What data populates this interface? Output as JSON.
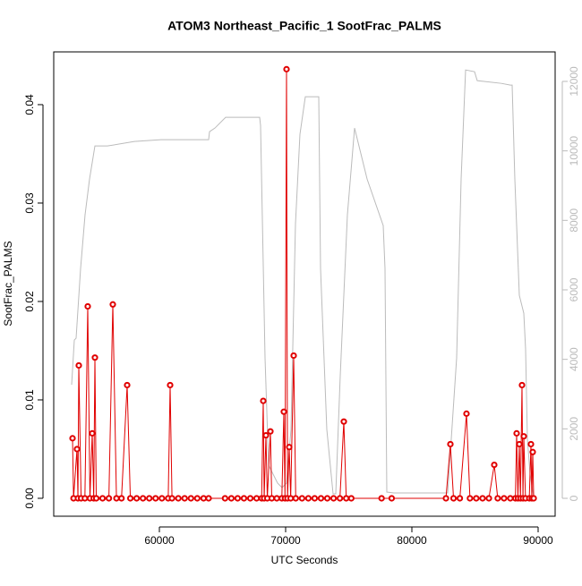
{
  "chart_data": {
    "type": "line",
    "title": "ATOM3 Northeast_Pacific_1 SootFrac_PALMS",
    "x_label": "UTC Seconds",
    "y_label": "SootFrac_PALMS",
    "xlim": [
      51631,
      91348
    ],
    "xticks": [
      60000,
      70000,
      80000,
      90000
    ],
    "ylim": [
      -0.00182,
      0.04536
    ],
    "yticks": [
      {
        "value": 0,
        "label": "0.00"
      },
      0.01,
      0.02,
      0.03,
      0.04
    ],
    "y2lim": [
      -515,
      12849
    ],
    "y2ticks": [
      0,
      2000,
      4000,
      6000,
      8000,
      10000,
      12000
    ],
    "series": [
      {
        "color": "#e00000",
        "markers": true,
        "x": [
          53121,
          53200,
          53475,
          53550,
          53617,
          53800,
          54100,
          54326,
          54500,
          54681,
          54800,
          54894,
          55000,
          55500,
          56000,
          56312,
          56600,
          57000,
          57447,
          57700,
          58200,
          58700,
          59200,
          59700,
          60200,
          60700,
          60851,
          61000,
          61500,
          62000,
          62500,
          63000,
          63500,
          63900,
          65200,
          65700,
          66200,
          66700,
          67200,
          67700,
          68100,
          68227,
          68300,
          68440,
          68550,
          68794,
          68900,
          69300,
          69700,
          69858,
          69950,
          70071,
          70150,
          70284,
          70400,
          70638,
          70800,
          71300,
          71800,
          72300,
          72800,
          73300,
          73800,
          74300,
          74610,
          74800,
          75200,
          77600,
          78400,
          82700,
          83050,
          83300,
          83800,
          84326,
          84600,
          85100,
          85600,
          86100,
          86525,
          86800,
          87300,
          87800,
          88200,
          88298,
          88400,
          88511,
          88600,
          88723,
          88800,
          88865,
          89000,
          89300,
          89433,
          89500,
          89574,
          89650
        ],
        "values": [
          0.0061,
          0,
          0.005,
          0,
          0.0135,
          0,
          0,
          0.0195,
          0,
          0.0066,
          0,
          0.0143,
          0,
          0,
          0,
          0.0197,
          0,
          0,
          0.0115,
          0,
          0,
          0,
          0,
          0,
          0,
          0,
          0.0115,
          0,
          0,
          0,
          0,
          0,
          0,
          0,
          0,
          0,
          0,
          0,
          0,
          0,
          0,
          0.0099,
          0,
          0.0064,
          0,
          0.0068,
          0,
          0,
          0,
          0.0088,
          0,
          0.0436,
          0,
          0.0052,
          0,
          0.0145,
          0,
          0,
          0,
          0,
          0,
          0,
          0,
          0,
          0.0078,
          0,
          0,
          0,
          0,
          0,
          0.0055,
          0,
          0,
          0.0086,
          0,
          0,
          0,
          0,
          0.0034,
          0,
          0,
          0,
          0,
          0.0066,
          0,
          0.0055,
          0,
          0.0115,
          0,
          0.0063,
          0,
          0,
          0.0055,
          0,
          0.0047,
          0
        ]
      },
      {
        "color": "#bbbbbb",
        "axis": "y2",
        "markers": false,
        "x": [
          53050,
          53262,
          53404,
          53759,
          54113,
          54468,
          54894,
          55887,
          58014,
          60142,
          63901,
          63972,
          64397,
          65248,
          67943,
          68014,
          68369,
          68652,
          69362,
          69716,
          70071,
          70425,
          70780,
          71134,
          71560,
          72624,
          72766,
          73262,
          73759,
          73971,
          74326,
          74893,
          75461,
          76454,
          77730,
          77872,
          78014,
          78581,
          82837,
          83546,
          83901,
          84255,
          84965,
          85177,
          87092,
          87801,
          87943,
          88156,
          88511,
          88865,
          89007,
          89149,
          89362,
          89645
        ],
        "values": [
          3269,
          4556,
          4608,
          6615,
          8160,
          9189,
          10141,
          10141,
          10270,
          10322,
          10322,
          10553,
          10656,
          10965,
          10965,
          10733,
          4041,
          952,
          438,
          309,
          438,
          1982,
          7902,
          10476,
          11557,
          11557,
          6615,
          1982,
          129,
          129,
          3526,
          8160,
          10656,
          9189,
          7851,
          6615,
          180,
          154,
          154,
          4041,
          9189,
          12329,
          12278,
          12021,
          11943,
          11892,
          11892,
          9189,
          5843,
          5328,
          4299,
          1725,
          695,
          51
        ]
      }
    ]
  }
}
